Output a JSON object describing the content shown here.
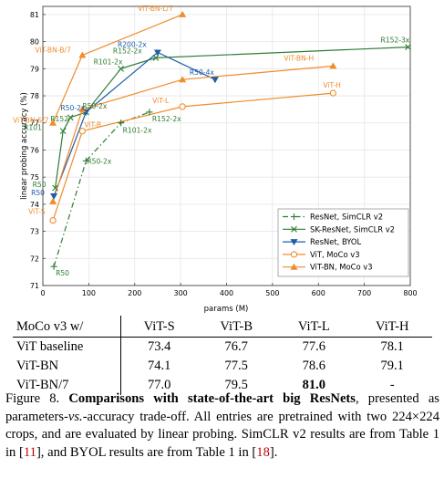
{
  "chart_data": {
    "type": "line",
    "xlabel": "params (M)",
    "ylabel": "linear probing accuracy (%)",
    "xlim": [
      0,
      800
    ],
    "ylim": [
      71,
      81.3
    ],
    "xticks": [
      0,
      100,
      200,
      300,
      400,
      500,
      600,
      700,
      800
    ],
    "yticks": [
      71,
      72,
      73,
      74,
      75,
      76,
      77,
      78,
      79,
      80,
      81
    ],
    "grid": true,
    "legend_position": "lower-right",
    "series": [
      {
        "name": "ResNet, SimCLR v2",
        "color": "#2e7d32",
        "marker": "plus",
        "dash": "6,3,1.5,3",
        "points": [
          {
            "x": 24,
            "y": 71.7,
            "label": "R50"
          },
          {
            "x": 94,
            "y": 75.6,
            "label": "R50-2x"
          },
          {
            "x": 170,
            "y": 77.0,
            "label": "R101-2x"
          },
          {
            "x": 232,
            "y": 77.4,
            "label": "R152-2x"
          }
        ]
      },
      {
        "name": "SK-ResNet, SimCLR v2",
        "color": "#2e7d32",
        "marker": "x",
        "dash": "",
        "points": [
          {
            "x": 27,
            "y": 74.6,
            "label": "R50"
          },
          {
            "x": 44,
            "y": 76.7,
            "label": "R101"
          },
          {
            "x": 60,
            "y": 77.2,
            "label": "R152"
          },
          {
            "x": 94,
            "y": 77.4,
            "label": "R50-2x"
          },
          {
            "x": 170,
            "y": 79.0,
            "label": "R101-2x"
          },
          {
            "x": 246,
            "y": 79.4,
            "label": "R152-2x"
          },
          {
            "x": 795,
            "y": 79.8,
            "label": "R152-3x"
          }
        ]
      },
      {
        "name": "ResNet, BYOL",
        "color": "#1f5fa8",
        "marker": "triangle-down",
        "dash": "",
        "points": [
          {
            "x": 24,
            "y": 74.3,
            "label": "R50"
          },
          {
            "x": 94,
            "y": 77.4,
            "label": "R50-2x"
          },
          {
            "x": 250,
            "y": 79.6,
            "label": "R200-2x"
          },
          {
            "x": 375,
            "y": 78.6,
            "label": "R50-4x"
          }
        ]
      },
      {
        "name": "ViT, MoCo v3",
        "color": "#f08c2a",
        "marker": "circle",
        "dash": "",
        "points": [
          {
            "x": 22,
            "y": 73.4,
            "label": "ViT-S"
          },
          {
            "x": 86,
            "y": 76.7,
            "label": "ViT-B"
          },
          {
            "x": 304,
            "y": 77.6,
            "label": "ViT-L"
          },
          {
            "x": 632,
            "y": 78.1,
            "label": "ViT-H"
          }
        ]
      },
      {
        "name": "ViT-BN, MoCo v3",
        "color": "#f08c2a",
        "marker": "triangle-up",
        "dash": "",
        "points": [
          {
            "x": 22,
            "y": 74.1,
            "label": ""
          },
          {
            "x": 86,
            "y": 77.5,
            "label": ""
          },
          {
            "x": 304,
            "y": 78.6,
            "label": ""
          },
          {
            "x": 632,
            "y": 79.1,
            "label": "ViT-BN-H"
          }
        ]
      },
      {
        "name": "ViT-BN/7, MoCo v3",
        "color": "#f08c2a",
        "marker": "triangle-up",
        "dash": "",
        "in_legend": false,
        "points": [
          {
            "x": 22,
            "y": 77.0,
            "label": "ViT-BN-S/7"
          },
          {
            "x": 86,
            "y": 79.5,
            "label": "ViT-BN-B/7"
          },
          {
            "x": 304,
            "y": 81.0,
            "label": "ViT-BN-L/7"
          }
        ]
      }
    ]
  },
  "table": {
    "header": [
      "MoCo v3 w/",
      "ViT-S",
      "ViT-B",
      "ViT-L",
      "ViT-H"
    ],
    "rows": [
      {
        "cells": [
          "ViT baseline",
          "73.4",
          "76.7",
          "77.6",
          "78.1"
        ],
        "bold_index": -1
      },
      {
        "cells": [
          "ViT-BN",
          "74.1",
          "77.5",
          "78.6",
          "79.1"
        ],
        "bold_index": -1
      },
      {
        "cells": [
          "ViT-BN/7",
          "77.0",
          "79.5",
          "81.0",
          "-"
        ],
        "bold_index": 3
      }
    ]
  },
  "caption": {
    "label": "Figure 8.",
    "bold": "Comparisons with state-of-the-art big ResNets",
    "part1": ", presented as parameters-",
    "vs": "vs.",
    "part2": "-accuracy trade-off. All entries are pretrained with two 224×224 crops, and are evaluated by linear probing. SimCLR v2 results are from Table 1 in [",
    "ref1": "11",
    "part3": "], and BYOL results are from Table 1 in [",
    "ref2": "18",
    "part4": "]."
  }
}
